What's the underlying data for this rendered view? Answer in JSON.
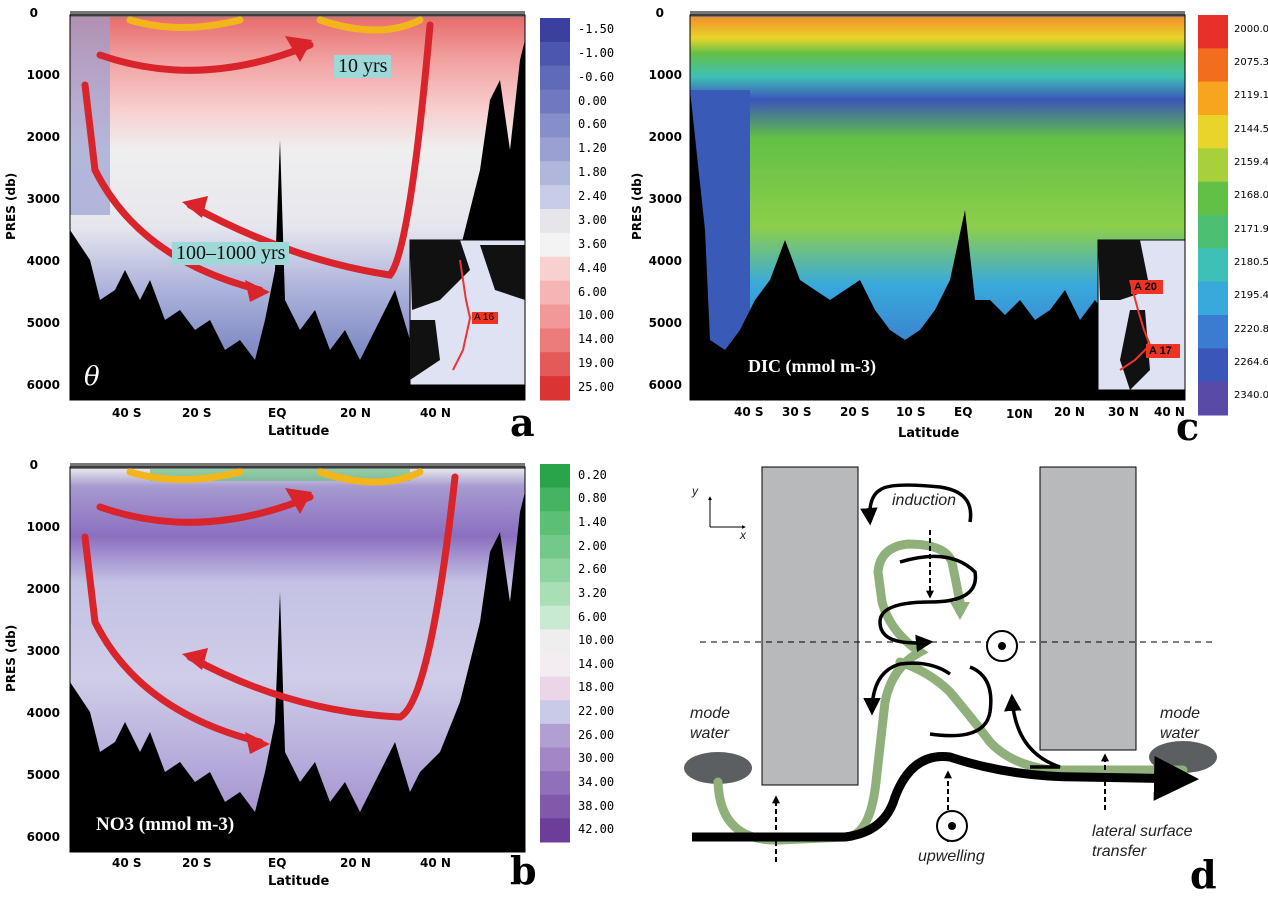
{
  "chart_data": [
    {
      "panel": "a",
      "type": "heatmap",
      "ylabel": "PRES (db)",
      "xlabel": "Latitude",
      "y_ticks": [
        "0",
        "1000",
        "2000",
        "3000",
        "4000",
        "5000",
        "6000"
      ],
      "x_ticks": [
        "40 S",
        "20 S",
        "EQ",
        "20 N",
        "40 N"
      ],
      "symbol": "θ",
      "colorbar": [
        "-1.50",
        "-1.00",
        "-0.60",
        "0.00",
        "0.60",
        "1.20",
        "1.80",
        "2.40",
        "3.00",
        "3.60",
        "4.40",
        "6.00",
        "10.00",
        "14.00",
        "19.00",
        "25.00"
      ],
      "colorbar_colors": [
        "#3a3fa0",
        "#4d56ae",
        "#5f6ab8",
        "#7079c0",
        "#868fca",
        "#9aa0d2",
        "#b0b6dc",
        "#c8cce6",
        "#e6e6ea",
        "#f3f3f3",
        "#f9d0d0",
        "#f6b4b4",
        "#f19898",
        "#ec7b7b",
        "#e45a5a",
        "#db3434"
      ],
      "annotations": [
        "10 yrs",
        "100–1000 yrs"
      ],
      "inset_label": "A 16"
    },
    {
      "panel": "b",
      "type": "heatmap",
      "ylabel": "PRES (db)",
      "xlabel": "Latitude",
      "y_ticks": [
        "0",
        "1000",
        "2000",
        "3000",
        "4000",
        "5000",
        "6000"
      ],
      "x_ticks": [
        "40 S",
        "20 S",
        "EQ",
        "20 N",
        "40 N"
      ],
      "field_label": "NO3 (mmol m-3)",
      "colorbar": [
        "0.20",
        "0.80",
        "1.40",
        "2.00",
        "2.60",
        "3.20",
        "6.00",
        "10.00",
        "14.00",
        "18.00",
        "22.00",
        "26.00",
        "30.00",
        "34.00",
        "38.00",
        "42.00"
      ],
      "colorbar_colors": [
        "#2aa44a",
        "#44b463",
        "#5cbf76",
        "#74c88a",
        "#8fd3a0",
        "#aadfb6",
        "#c9ead2",
        "#eeeeee",
        "#f3ecf1",
        "#ead6e6",
        "#c9c9e8",
        "#b29fd2",
        "#a286c6",
        "#9070b8",
        "#8059ab",
        "#6c3e99"
      ]
    },
    {
      "panel": "c",
      "type": "heatmap",
      "ylabel": "PRES (db)",
      "xlabel": "Latitude",
      "y_ticks": [
        "0",
        "1000",
        "2000",
        "3000",
        "4000",
        "5000",
        "6000"
      ],
      "x_ticks": [
        "40 S",
        "30 S",
        "20 S",
        "10 S",
        "EQ",
        "10N",
        "20 N",
        "30 N",
        "40 N"
      ],
      "field_label": "DIC (mmol m-3)",
      "colorbar": [
        "2000.0",
        "2075.3",
        "2119.1",
        "2144.5",
        "2159.4",
        "2168.0",
        "2171.9",
        "2180.5",
        "2195.4",
        "2220.8",
        "2264.6",
        "2340.0"
      ],
      "colorbar_colors": [
        "#e8302a",
        "#f26d1e",
        "#f7a51e",
        "#e8d42a",
        "#a8d03a",
        "#62c046",
        "#4cbf72",
        "#3fc0b6",
        "#39a9dc",
        "#3b7bd0",
        "#3a56b8",
        "#5a4aa8"
      ],
      "inset_labels": [
        "A 20",
        "A 17"
      ]
    }
  ],
  "diagram": {
    "panel": "d",
    "axes": [
      "y",
      "x"
    ],
    "labels": {
      "induction": "induction",
      "mode_water_left": [
        "mode",
        "water"
      ],
      "mode_water_right": [
        "mode",
        "water"
      ],
      "upwelling": "upwelling",
      "lateral": [
        "lateral surface",
        "transfer"
      ]
    }
  },
  "letters": [
    "a",
    "b",
    "c",
    "d"
  ]
}
